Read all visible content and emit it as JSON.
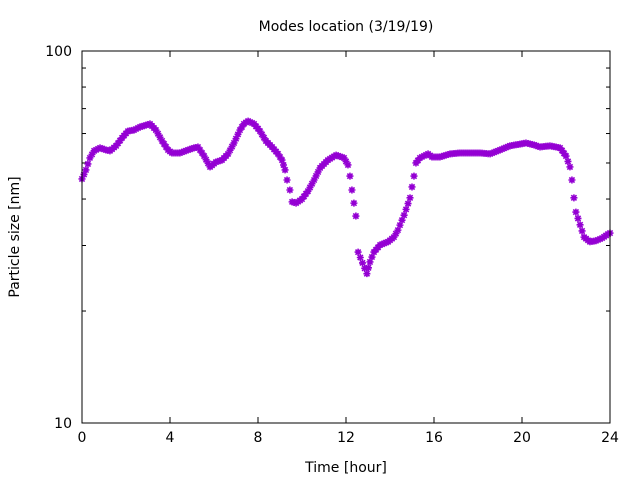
{
  "chart_data": {
    "type": "scatter",
    "title": "Modes location (3/19/19)",
    "xlabel": "Time [hour]",
    "ylabel": "Particle size [nm]",
    "xlim": [
      0,
      24
    ],
    "ylim": [
      10,
      100
    ],
    "yscale": "log",
    "xticks": [
      "0",
      "4",
      "8",
      "12",
      "16",
      "20",
      "24"
    ],
    "yticks": [
      "10",
      "100"
    ],
    "grid": false,
    "marker_color": "#9400d3",
    "series": [
      {
        "name": "modes",
        "x": [
          0,
          0.18,
          0.36,
          0.55,
          0.82,
          1.09,
          1.27,
          1.55,
          1.82,
          2.09,
          2.36,
          2.64,
          2.91,
          3.09,
          3.36,
          3.64,
          3.91,
          4.09,
          4.45,
          4.82,
          5.09,
          5.27,
          5.55,
          5.82,
          6.09,
          6.36,
          6.64,
          6.91,
          7.18,
          7.36,
          7.55,
          7.82,
          8.09,
          8.36,
          8.64,
          8.91,
          9.09,
          9.23,
          9.32,
          9.45,
          9.55,
          9.73,
          10.0,
          10.27,
          10.55,
          10.82,
          11.18,
          11.55,
          11.91,
          12.09,
          12.18,
          12.27,
          12.36,
          12.45,
          12.55,
          12.95,
          13.09,
          13.27,
          13.55,
          13.91,
          14.18,
          14.36,
          14.64,
          14.91,
          15.0,
          15.09,
          15.18,
          15.36,
          15.73,
          15.91,
          16.27,
          16.73,
          17.18,
          18.09,
          18.55,
          19.0,
          19.45,
          19.91,
          20.18,
          20.55,
          20.82,
          21.27,
          21.73,
          22.0,
          22.18,
          22.27,
          22.36,
          22.45,
          22.64,
          22.82,
          23.09,
          23.36,
          23.64,
          23.91,
          24.0
        ],
        "y": [
          45.3,
          47.9,
          51.6,
          53.9,
          54.9,
          54.2,
          53.9,
          55.6,
          58.4,
          60.9,
          61.3,
          62.5,
          63.2,
          63.7,
          61.3,
          57.3,
          54.2,
          53.2,
          53.2,
          54.2,
          54.9,
          55.2,
          52.2,
          48.8,
          50.3,
          50.9,
          52.9,
          56.6,
          61.3,
          63.7,
          64.8,
          63.7,
          60.9,
          57.3,
          55.2,
          52.9,
          50.9,
          47.9,
          45.0,
          42.3,
          39.3,
          39.0,
          40.0,
          42.0,
          45.0,
          48.5,
          50.9,
          52.5,
          51.6,
          49.4,
          46.1,
          42.3,
          39.0,
          36.0,
          28.8,
          25.2,
          27.1,
          28.8,
          30.1,
          30.7,
          31.6,
          33.0,
          36.2,
          40.3,
          43.1,
          46.1,
          50.0,
          51.6,
          52.9,
          51.9,
          51.9,
          52.9,
          53.2,
          53.2,
          52.9,
          54.2,
          55.6,
          56.2,
          56.6,
          55.9,
          55.2,
          55.6,
          54.9,
          52.2,
          48.8,
          45.0,
          40.3,
          36.9,
          34.1,
          31.6,
          30.7,
          30.9,
          31.4,
          32.2,
          32.4
        ]
      }
    ]
  }
}
